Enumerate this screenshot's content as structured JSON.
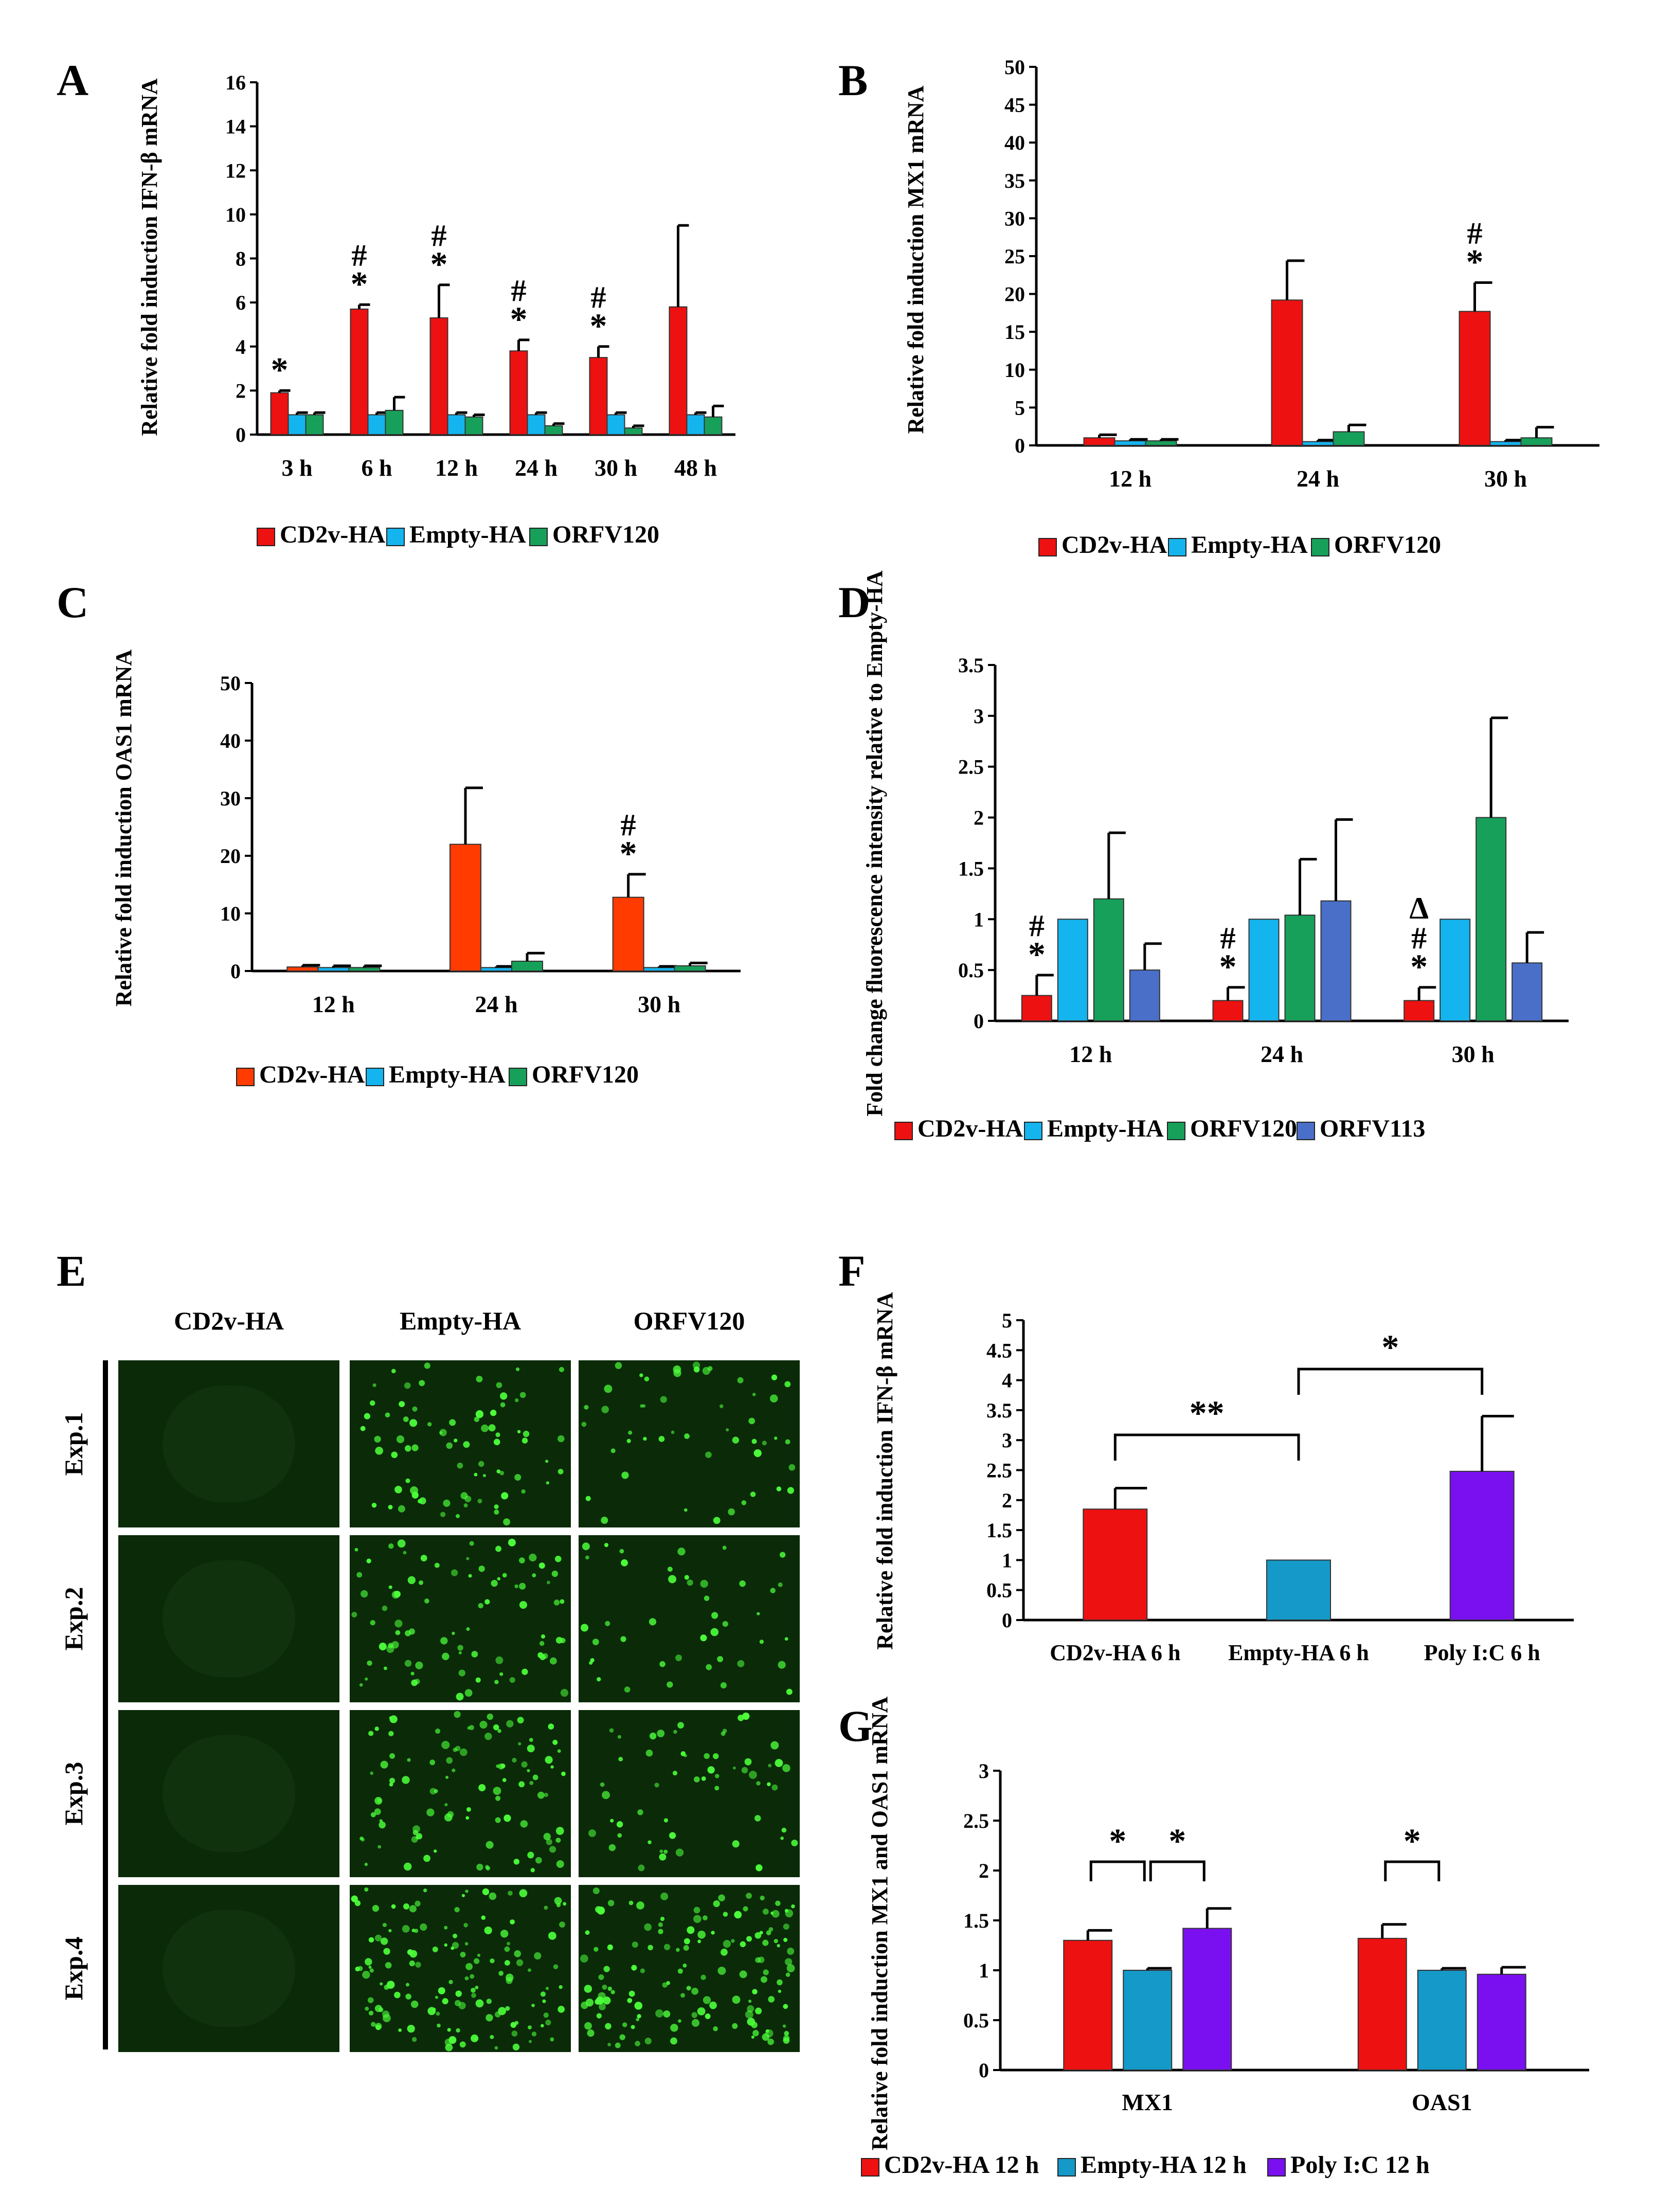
{
  "figure_caption": "",
  "colors": {
    "red": "#ee1111",
    "orange": "#ff3b00",
    "cyan": "#14b4ee",
    "teal": "#1499c9",
    "green": "#17a05a",
    "blue": "#4a6fc9",
    "purple": "#7a10f0"
  },
  "chart_data": [
    {
      "panel": "A",
      "type": "bar",
      "ylabel": "Relative fold induction IFN-β mRNA",
      "ylim": [
        0,
        16
      ],
      "yticks": [
        0,
        2,
        4,
        6,
        8,
        10,
        12,
        14,
        16
      ],
      "categories": [
        "3 h",
        "6 h",
        "12 h",
        "24 h",
        "30 h",
        "48 h"
      ],
      "series": [
        {
          "name": "CD2v-HA",
          "color": "#ee1111",
          "values": [
            1.9,
            5.7,
            5.3,
            3.8,
            3.5,
            5.8
          ],
          "errors": [
            0.1,
            0.2,
            1.5,
            0.5,
            0.5,
            3.7
          ]
        },
        {
          "name": "Empty-HA",
          "color": "#14b4ee",
          "values": [
            0.9,
            0.9,
            0.9,
            0.9,
            0.9,
            0.9
          ],
          "errors": [
            0.1,
            0.1,
            0.1,
            0.1,
            0.1,
            0.1
          ]
        },
        {
          "name": "ORFV120",
          "color": "#17a05a",
          "values": [
            0.9,
            1.1,
            0.8,
            0.4,
            0.3,
            0.8
          ],
          "errors": [
            0.1,
            0.6,
            0.1,
            0.1,
            0.1,
            0.5
          ]
        }
      ],
      "annotations": [
        {
          "category": 0,
          "text": "*"
        },
        {
          "category": 1,
          "text": "*"
        },
        {
          "category": 1,
          "text": "#"
        },
        {
          "category": 2,
          "text": "*"
        },
        {
          "category": 2,
          "text": "#"
        },
        {
          "category": 3,
          "text": "*"
        },
        {
          "category": 3,
          "text": "#"
        },
        {
          "category": 4,
          "text": "*"
        },
        {
          "category": 4,
          "text": "#"
        }
      ]
    },
    {
      "panel": "B",
      "type": "bar",
      "ylabel": "Relative fold induction MX1 mRNA",
      "ylim": [
        0,
        50
      ],
      "yticks": [
        0,
        5,
        10,
        15,
        20,
        25,
        30,
        35,
        40,
        45,
        50
      ],
      "categories": [
        "12 h",
        "24 h",
        "30 h"
      ],
      "series": [
        {
          "name": "CD2v-HA",
          "color": "#ee1111",
          "values": [
            1.0,
            19.2,
            17.7
          ],
          "errors": [
            0.4,
            5.2,
            3.8
          ]
        },
        {
          "name": "Empty-HA",
          "color": "#14b4ee",
          "values": [
            0.6,
            0.5,
            0.5
          ],
          "errors": [
            0.2,
            0.2,
            0.2
          ]
        },
        {
          "name": "ORFV120",
          "color": "#17a05a",
          "values": [
            0.6,
            1.8,
            1.0
          ],
          "errors": [
            0.2,
            0.9,
            1.4
          ]
        }
      ],
      "annotations": [
        {
          "category": 2,
          "text": "*"
        },
        {
          "category": 2,
          "text": "#"
        }
      ]
    },
    {
      "panel": "C",
      "type": "bar",
      "ylabel": "Relative fold induction OAS1 mRNA",
      "ylim": [
        0,
        50
      ],
      "yticks": [
        0,
        10,
        20,
        30,
        40,
        50
      ],
      "categories": [
        "12 h",
        "24 h",
        "30 h"
      ],
      "series": [
        {
          "name": "CD2v-HA",
          "color": "#ff3b00",
          "values": [
            0.7,
            22.0,
            12.8
          ],
          "errors": [
            0.3,
            9.8,
            4.0
          ]
        },
        {
          "name": "Empty-HA",
          "color": "#14b4ee",
          "values": [
            0.6,
            0.6,
            0.6
          ],
          "errors": [
            0.3,
            0.2,
            0.2
          ]
        },
        {
          "name": "ORFV120",
          "color": "#17a05a",
          "values": [
            0.6,
            1.7,
            0.9
          ],
          "errors": [
            0.3,
            1.4,
            0.5
          ]
        }
      ],
      "annotations": [
        {
          "category": 2,
          "text": "*"
        },
        {
          "category": 2,
          "text": "#"
        }
      ]
    },
    {
      "panel": "D",
      "type": "bar",
      "ylabel": "Fold change fluorescence intensity relative to Empty-HA",
      "ylim": [
        0,
        3.5
      ],
      "yticks": [
        0,
        0.5,
        1,
        1.5,
        2,
        2.5,
        3,
        3.5
      ],
      "categories": [
        "12 h",
        "24 h",
        "30 h"
      ],
      "series": [
        {
          "name": "CD2v-HA",
          "color": "#ee1111",
          "values": [
            0.25,
            0.2,
            0.2
          ],
          "errors": [
            0.2,
            0.13,
            0.13
          ]
        },
        {
          "name": "Empty-HA",
          "color": "#14b4ee",
          "values": [
            1.0,
            1.0,
            1.0
          ],
          "errors": [
            0.0,
            0.0,
            0.0
          ]
        },
        {
          "name": "ORFV120",
          "color": "#17a05a",
          "values": [
            1.2,
            1.04,
            2.0
          ],
          "errors": [
            0.65,
            0.55,
            0.98
          ]
        },
        {
          "name": "ORFV113",
          "color": "#4a6fc9",
          "values": [
            0.5,
            1.18,
            0.57
          ],
          "errors": [
            0.26,
            0.8,
            0.3
          ]
        }
      ],
      "annotations": [
        {
          "category": 0,
          "text": "*"
        },
        {
          "category": 0,
          "text": "#"
        },
        {
          "category": 1,
          "text": "*"
        },
        {
          "category": 1,
          "text": "#"
        },
        {
          "category": 2,
          "text": "*"
        },
        {
          "category": 2,
          "text": "#"
        },
        {
          "category": 2,
          "text": "Δ"
        }
      ]
    },
    {
      "panel": "F",
      "type": "bar",
      "ylabel": "Relative fold induction IFN-β mRNA",
      "ylim": [
        0,
        5
      ],
      "yticks": [
        0,
        0.5,
        1,
        1.5,
        2,
        2.5,
        3,
        3.5,
        4,
        4.5,
        5
      ],
      "categories": [
        "CD2v-HA 6 h",
        "Empty-HA 6 h",
        "Poly I:C 6 h"
      ],
      "values": [
        1.85,
        1.0,
        2.48
      ],
      "errors": [
        0.35,
        0.0,
        0.92
      ],
      "colors": [
        "#ee1111",
        "#1499c9",
        "#7a10f0"
      ],
      "brackets": [
        {
          "from": 0,
          "to": 1,
          "text": "**"
        },
        {
          "from": 1,
          "to": 2,
          "text": "*"
        }
      ]
    },
    {
      "panel": "G",
      "type": "bar",
      "ylabel": "Relative fold induction MX1 and OAS1 mRNA",
      "ylim": [
        0,
        3
      ],
      "yticks": [
        0,
        0.5,
        1,
        1.5,
        2,
        2.5,
        3
      ],
      "categories": [
        "MX1",
        "OAS1"
      ],
      "series": [
        {
          "name": "CD2v-HA 12 h",
          "color": "#ee1111",
          "values": [
            1.3,
            1.32
          ],
          "errors": [
            0.1,
            0.14
          ]
        },
        {
          "name": "Empty-HA 12 h",
          "color": "#1499c9",
          "values": [
            1.0,
            1.0
          ],
          "errors": [
            0.02,
            0.02
          ]
        },
        {
          "name": "Poly I:C 12 h",
          "color": "#7a10f0",
          "values": [
            1.42,
            0.96
          ],
          "errors": [
            0.2,
            0.07
          ]
        }
      ],
      "brackets": [
        {
          "category": 0,
          "from": 0,
          "to": 1,
          "text": "*"
        },
        {
          "category": 0,
          "from": 1,
          "to": 2,
          "text": "*"
        },
        {
          "category": 1,
          "from": 0,
          "to": 1,
          "text": "*"
        }
      ]
    }
  ],
  "panel_E": {
    "label": "E",
    "columns": [
      "CD2v-HA",
      "Empty-HA",
      "ORFV120"
    ],
    "rows": [
      "Exp.1",
      "Exp.2",
      "Exp.3",
      "Exp.4"
    ],
    "cell_density": [
      [
        0,
        0.55,
        0.35
      ],
      [
        0,
        0.6,
        0.3
      ],
      [
        0,
        0.7,
        0.4
      ],
      [
        0,
        1.0,
        1.0
      ]
    ]
  }
}
